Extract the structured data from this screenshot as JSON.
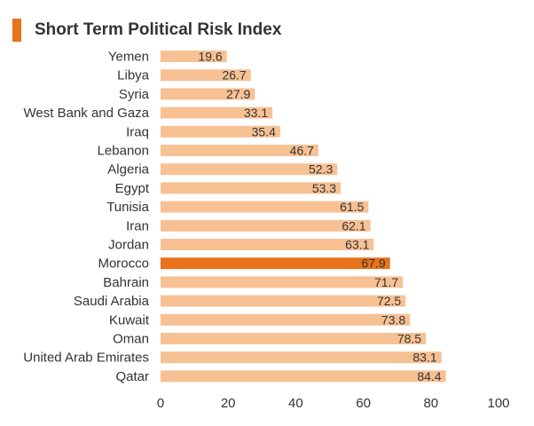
{
  "colors": {
    "accent": "#e8731a",
    "bar": "#f8c194",
    "text": "#333333"
  },
  "chart_data": {
    "type": "bar",
    "orientation": "horizontal",
    "title": "Short Term Political Risk Index",
    "xlabel": "",
    "ylabel": "",
    "xlim": [
      0,
      100
    ],
    "xticks": [
      0,
      20,
      40,
      60,
      80,
      100
    ],
    "grid": false,
    "legend": "none",
    "highlight": "Morocco",
    "categories": [
      "Yemen",
      "Libya",
      "Syria",
      "West Bank and Gaza",
      "Iraq",
      "Lebanon",
      "Algeria",
      "Egypt",
      "Tunisia",
      "Iran",
      "Jordan",
      "Morocco",
      "Bahrain",
      "Saudi Arabia",
      "Kuwait",
      "Oman",
      "United Arab Emirates",
      "Qatar"
    ],
    "values": [
      19.6,
      26.7,
      27.9,
      33.1,
      35.4,
      46.7,
      52.3,
      53.3,
      61.5,
      62.1,
      63.1,
      67.9,
      71.7,
      72.5,
      73.8,
      78.5,
      83.1,
      84.4
    ]
  }
}
